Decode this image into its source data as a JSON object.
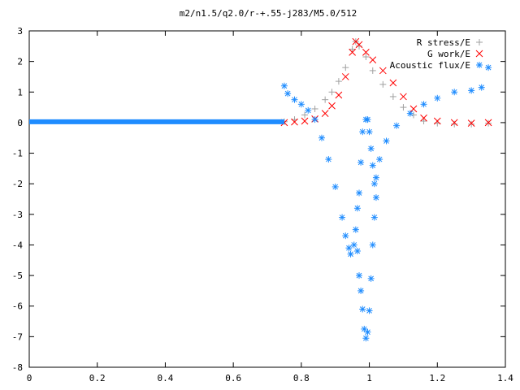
{
  "chart_data": {
    "type": "scatter",
    "title": "m2/n1.5/q2.0/r-+.55-j283/M5.0/512",
    "xlabel": "",
    "ylabel": "",
    "xlim": [
      0,
      1.4
    ],
    "ylim": [
      -8,
      3
    ],
    "x_ticks": [
      "0",
      "0.2",
      "0.4",
      "0.6",
      "0.8",
      "1",
      "1.2",
      "1.4"
    ],
    "y_ticks": [
      "3",
      "2",
      "1",
      "0",
      "-1",
      "-2",
      "-3",
      "-4",
      "-5",
      "-6",
      "-7",
      "-8"
    ],
    "grid": false,
    "legend_position": "top-right",
    "series": [
      {
        "name": "R stress/E",
        "marker": "plus",
        "color": "#a0a0a0",
        "points": [
          [
            0.75,
            0.03
          ],
          [
            0.78,
            0.1
          ],
          [
            0.81,
            0.25
          ],
          [
            0.84,
            0.45
          ],
          [
            0.87,
            0.75
          ],
          [
            0.89,
            1.0
          ],
          [
            0.91,
            1.35
          ],
          [
            0.93,
            1.8
          ],
          [
            0.95,
            2.4
          ],
          [
            0.96,
            2.65
          ],
          [
            0.97,
            2.5
          ],
          [
            0.99,
            2.15
          ],
          [
            1.01,
            1.7
          ],
          [
            1.04,
            1.25
          ],
          [
            1.07,
            0.85
          ],
          [
            1.1,
            0.5
          ],
          [
            1.13,
            0.25
          ],
          [
            1.16,
            0.05
          ],
          [
            1.2,
            -0.02
          ],
          [
            1.25,
            -0.05
          ],
          [
            1.3,
            -0.05
          ],
          [
            1.35,
            -0.02
          ]
        ]
      },
      {
        "name": "G work/E",
        "marker": "cross",
        "color": "#ff0000",
        "points": [
          [
            0.75,
            0.0
          ],
          [
            0.78,
            0.02
          ],
          [
            0.81,
            0.05
          ],
          [
            0.84,
            0.12
          ],
          [
            0.87,
            0.3
          ],
          [
            0.89,
            0.55
          ],
          [
            0.91,
            0.9
          ],
          [
            0.93,
            1.5
          ],
          [
            0.95,
            2.3
          ],
          [
            0.96,
            2.65
          ],
          [
            0.97,
            2.55
          ],
          [
            0.99,
            2.3
          ],
          [
            1.01,
            2.05
          ],
          [
            1.04,
            1.7
          ],
          [
            1.07,
            1.3
          ],
          [
            1.1,
            0.85
          ],
          [
            1.13,
            0.45
          ],
          [
            1.16,
            0.15
          ],
          [
            1.2,
            0.05
          ],
          [
            1.25,
            0.0
          ],
          [
            1.3,
            -0.02
          ],
          [
            1.35,
            0.0
          ]
        ]
      },
      {
        "name": "Acoustic flux/E",
        "marker": "star",
        "color": "#1e8cff",
        "points": [
          [
            0.75,
            1.2
          ],
          [
            0.76,
            0.95
          ],
          [
            0.78,
            0.75
          ],
          [
            0.8,
            0.6
          ],
          [
            0.82,
            0.4
          ],
          [
            0.84,
            0.1
          ],
          [
            0.86,
            -0.5
          ],
          [
            0.88,
            -1.2
          ],
          [
            0.9,
            -2.1
          ],
          [
            0.92,
            -3.1
          ],
          [
            0.93,
            -3.7
          ],
          [
            0.94,
            -4.1
          ],
          [
            0.945,
            -4.3
          ],
          [
            0.955,
            -4.0
          ],
          [
            0.96,
            -3.5
          ],
          [
            0.965,
            -2.8
          ],
          [
            0.97,
            -2.3
          ],
          [
            0.975,
            -1.3
          ],
          [
            0.98,
            -0.3
          ],
          [
            0.99,
            0.1
          ],
          [
            0.995,
            0.1
          ],
          [
            1.0,
            -0.3
          ],
          [
            1.005,
            -0.85
          ],
          [
            1.01,
            -1.4
          ],
          [
            1.015,
            -2.0
          ],
          [
            1.02,
            -1.8
          ],
          [
            1.03,
            -1.2
          ],
          [
            1.05,
            -0.6
          ],
          [
            1.08,
            -0.1
          ],
          [
            1.12,
            0.3
          ],
          [
            1.16,
            0.6
          ],
          [
            1.2,
            0.8
          ],
          [
            1.25,
            1.0
          ],
          [
            1.3,
            1.05
          ],
          [
            1.33,
            1.15
          ],
          [
            1.35,
            1.8
          ],
          [
            0.965,
            -4.2
          ],
          [
            0.97,
            -5.0
          ],
          [
            0.975,
            -5.5
          ],
          [
            0.98,
            -6.1
          ],
          [
            0.985,
            -6.75
          ],
          [
            0.99,
            -7.05
          ],
          [
            0.995,
            -6.85
          ],
          [
            1.0,
            -6.15
          ],
          [
            1.005,
            -5.1
          ],
          [
            1.01,
            -4.0
          ],
          [
            1.015,
            -3.1
          ],
          [
            1.02,
            -2.45
          ]
        ],
        "baseline_segment": {
          "x_start": 0,
          "x_end": 0.75,
          "y": 0
        }
      }
    ]
  }
}
